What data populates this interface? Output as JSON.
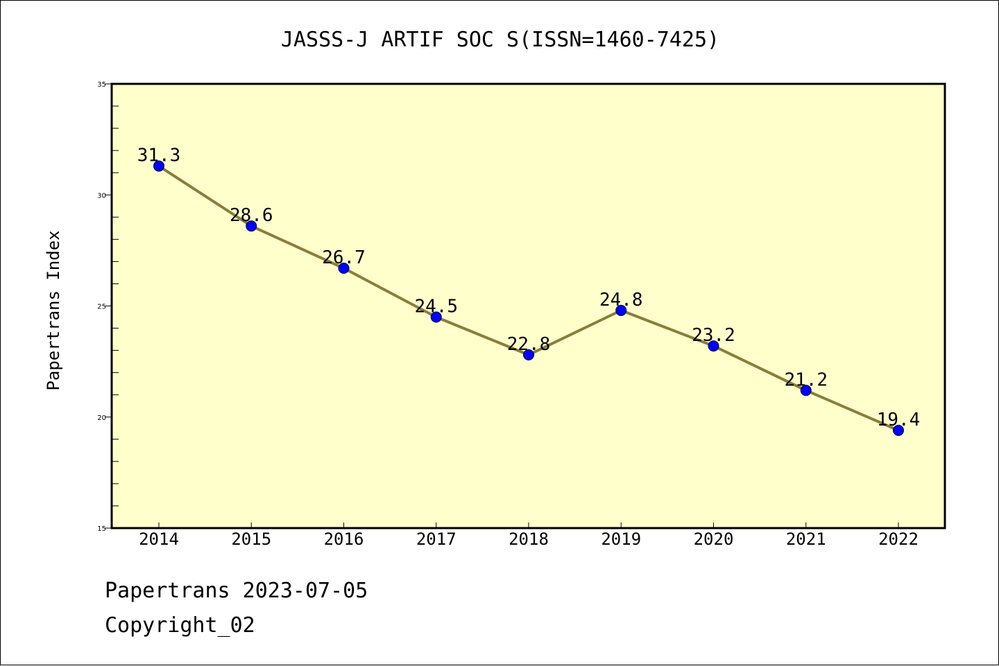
{
  "chart_data": {
    "type": "line",
    "title": "JASSS-J ARTIF SOC S(ISSN=1460-7425)",
    "xlabel": "",
    "ylabel": "Papertrans Index",
    "categories": [
      "2014",
      "2015",
      "2016",
      "2017",
      "2018",
      "2019",
      "2020",
      "2021",
      "2022"
    ],
    "series": [
      {
        "values": [
          31.3,
          28.6,
          26.7,
          24.5,
          22.8,
          24.8,
          23.2,
          21.2,
          19.4
        ],
        "data_labels": [
          "31.3",
          "28.6",
          "26.7",
          "24.5",
          "22.8",
          "24.8",
          "23.2",
          "21.2",
          "19.4"
        ]
      }
    ],
    "ylim": [
      15,
      35
    ],
    "yticks": [
      "15",
      "20",
      "25",
      "30",
      "35"
    ],
    "grid": false,
    "legend": "none",
    "colors": {
      "plot_background": "#ffffcc",
      "line": "#8b7d3a",
      "marker": "#0000ff"
    }
  },
  "footer": {
    "date_text": "Papertrans 2023-07-05",
    "copyright_text": "Copyright_02"
  }
}
